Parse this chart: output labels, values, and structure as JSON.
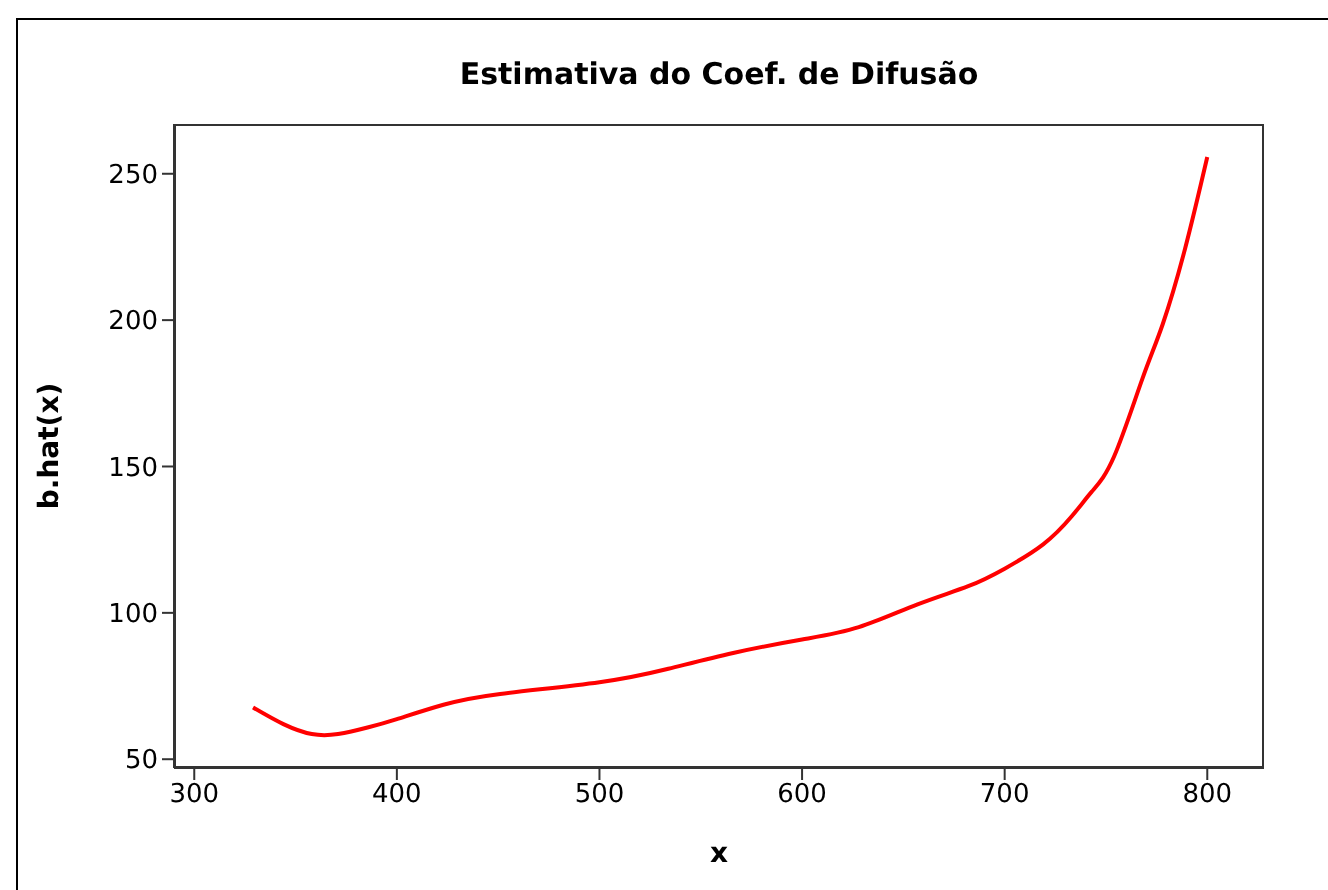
{
  "chart_data": {
    "type": "line",
    "title": "Estimativa do Coef. de Difusão",
    "xlabel": "x",
    "ylabel": "b.hat(x)",
    "x": [
      329,
      344,
      358,
      371,
      386,
      400,
      423,
      451,
      500,
      534,
      566,
      600,
      628,
      657,
      682,
      700,
      719,
      733,
      743,
      754,
      768,
      778,
      789,
      800
    ],
    "series": [
      {
        "color": "#ff0000",
        "values": [
          67.7,
          62,
          58.6,
          58.6,
          60.9,
          63.7,
          68.6,
          72.3,
          76.3,
          80.9,
          86.3,
          90.9,
          95.1,
          102.9,
          109.1,
          115.1,
          123.4,
          132.9,
          141.4,
          153.4,
          180,
          198.6,
          224.3,
          255.7
        ]
      }
    ],
    "xlim": [
      290,
      828
    ],
    "xticks": [
      300,
      400,
      500,
      600,
      700,
      800
    ],
    "ylim": [
      47,
      267
    ],
    "yticks": [
      50,
      100,
      150,
      200,
      250
    ],
    "marker": "none",
    "line_style": "solid"
  }
}
